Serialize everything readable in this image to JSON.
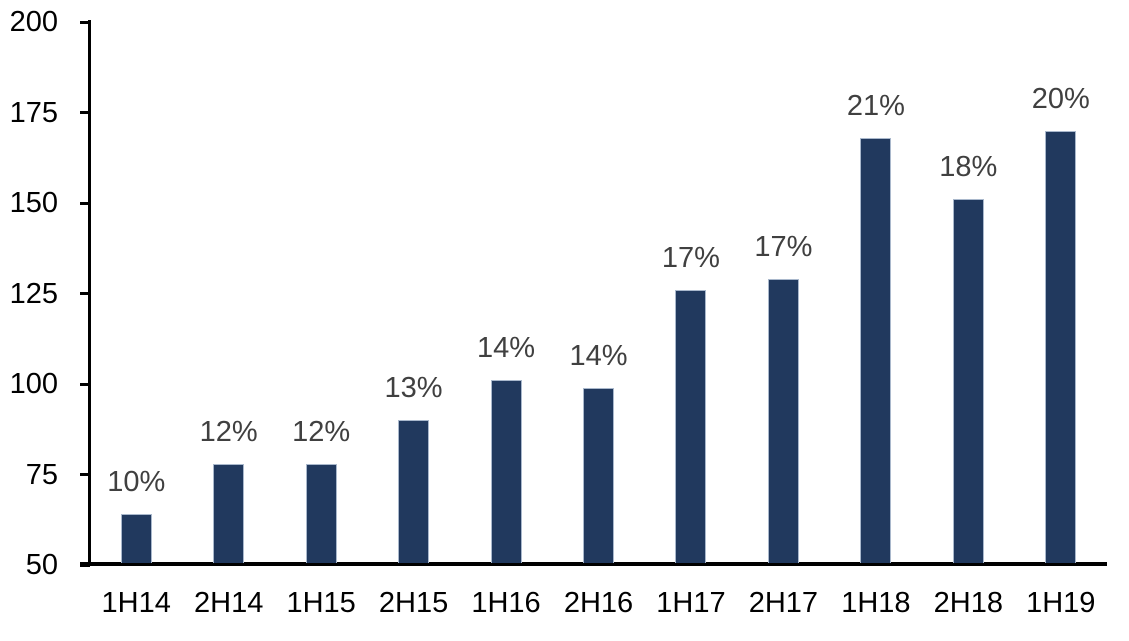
{
  "chart_data": {
    "type": "bar",
    "title": "",
    "xlabel": "",
    "ylabel": "",
    "categories": [
      "1H14",
      "2H14",
      "1H15",
      "2H15",
      "1H16",
      "2H16",
      "1H17",
      "2H17",
      "1H18",
      "2H18",
      "1H19"
    ],
    "values": [
      64,
      78,
      78,
      90,
      101,
      99,
      126,
      129,
      168,
      151,
      170
    ],
    "bar_labels": [
      "10%",
      "12%",
      "12%",
      "13%",
      "14%",
      "14%",
      "17%",
      "17%",
      "21%",
      "18%",
      "20%"
    ],
    "ylim": [
      50,
      200
    ],
    "yticks": [
      50,
      75,
      100,
      125,
      150,
      175,
      200
    ],
    "grid": false,
    "legend": "none",
    "colors": {
      "bar_fill": "#21395e",
      "bar_border": "#a9b8cc",
      "data_label": "#404040",
      "axis": "#000000",
      "background": "#ffffff"
    }
  }
}
